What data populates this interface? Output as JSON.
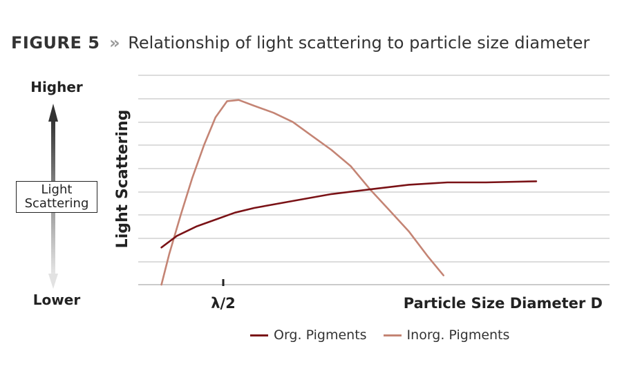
{
  "figure": {
    "label": "FIGURE 5",
    "separator": "»",
    "caption": "Relationship of light scattering to particle size diameter"
  },
  "scale": {
    "top_label": "Higher",
    "bottom_label": "Lower",
    "box_line1": "Light",
    "box_line2": "Scattering"
  },
  "chart_data": {
    "type": "line",
    "ylabel": "Light Scattering",
    "xlabel": "Particle Size Diameter D",
    "x_tick_labels": [
      {
        "x": 2.2,
        "label": "λ/2"
      }
    ],
    "xlim": [
      0,
      12
    ],
    "ylim": [
      0,
      8
    ],
    "grid": true,
    "legend_position": "bottom",
    "series": [
      {
        "name": "Org. Pigments",
        "color": "#7a1216",
        "x": [
          0.6,
          1.0,
          1.5,
          2.0,
          2.5,
          3.0,
          4.0,
          5.0,
          6.0,
          7.0,
          8.0,
          9.0,
          10.3
        ],
        "y": [
          1.6,
          2.1,
          2.5,
          2.8,
          3.1,
          3.3,
          3.6,
          3.9,
          4.1,
          4.3,
          4.4,
          4.4,
          4.45
        ]
      },
      {
        "name": "Inorg. Pigments",
        "color": "#c48474",
        "x": [
          0.6,
          0.8,
          1.1,
          1.4,
          1.7,
          2.0,
          2.3,
          2.6,
          3.0,
          3.5,
          4.0,
          4.5,
          5.0,
          5.5,
          6.0,
          6.5,
          7.0,
          7.5,
          7.9
        ],
        "y": [
          0.0,
          1.3,
          3.0,
          4.6,
          6.0,
          7.2,
          7.9,
          7.95,
          7.7,
          7.4,
          7.0,
          6.4,
          5.8,
          5.1,
          4.1,
          3.2,
          2.3,
          1.2,
          0.4
        ]
      }
    ]
  }
}
